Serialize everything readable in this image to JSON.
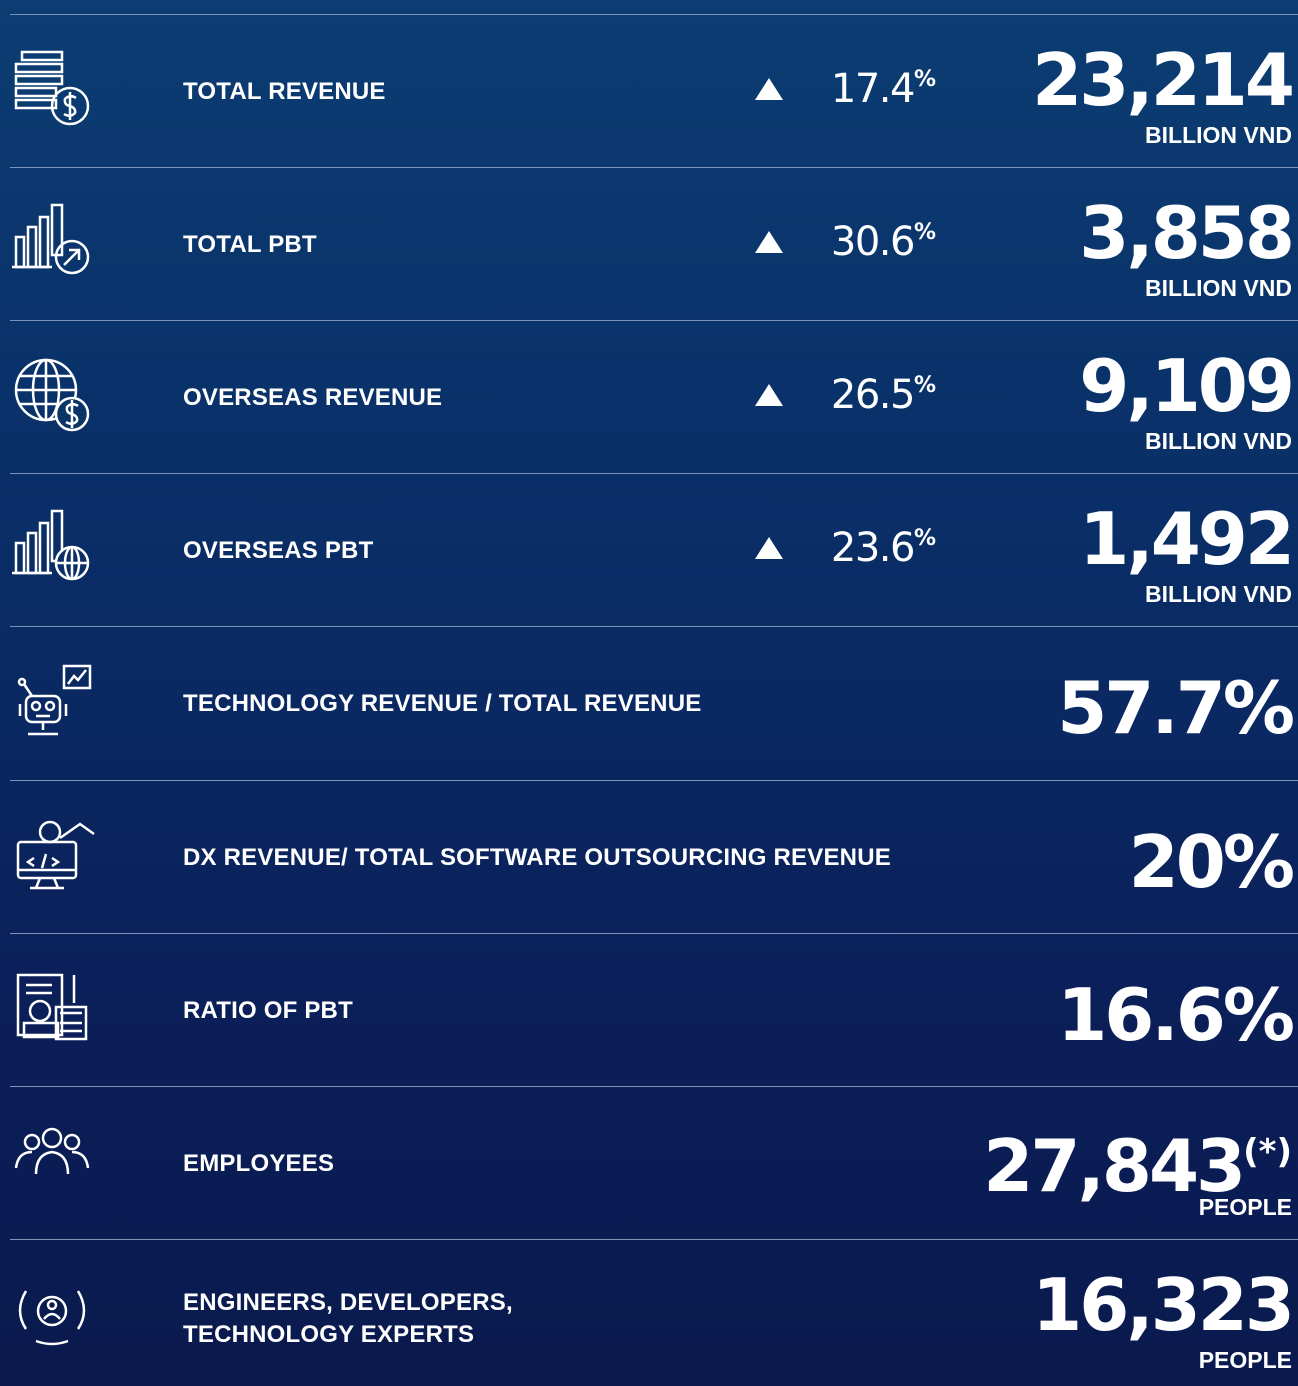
{
  "rows": [
    {
      "label": "TOTAL REVENUE",
      "change": "17.4",
      "change_unit": "%",
      "value": "23,214",
      "unit": "BILLION VND"
    },
    {
      "label": "TOTAL PBT",
      "change": "30.6",
      "change_unit": "%",
      "value": "3,858",
      "unit": "BILLION VND"
    },
    {
      "label": "OVERSEAS REVENUE",
      "change": "26.5",
      "change_unit": "%",
      "value": "9,109",
      "unit": "BILLION VND"
    },
    {
      "label": "OVERSEAS PBT",
      "change": "23.6",
      "change_unit": "%",
      "value": "1,492",
      "unit": "BILLION VND"
    },
    {
      "label": "TECHNOLOGY REVENUE / TOTAL REVENUE",
      "value": "57.7%"
    },
    {
      "label": "DX REVENUE/ TOTAL SOFTWARE OUTSOURCING REVENUE",
      "value": "20%"
    },
    {
      "label": "RATIO OF PBT",
      "value": "16.6%"
    },
    {
      "label": "EMPLOYEES",
      "value": "27,843",
      "note": "(*)",
      "unit": "PEOPLE"
    },
    {
      "label_lines": [
        "ENGINEERS, DEVELOPERS,",
        "TECHNOLOGY EXPERTS"
      ],
      "value": "16,323",
      "unit": "PEOPLE"
    }
  ]
}
